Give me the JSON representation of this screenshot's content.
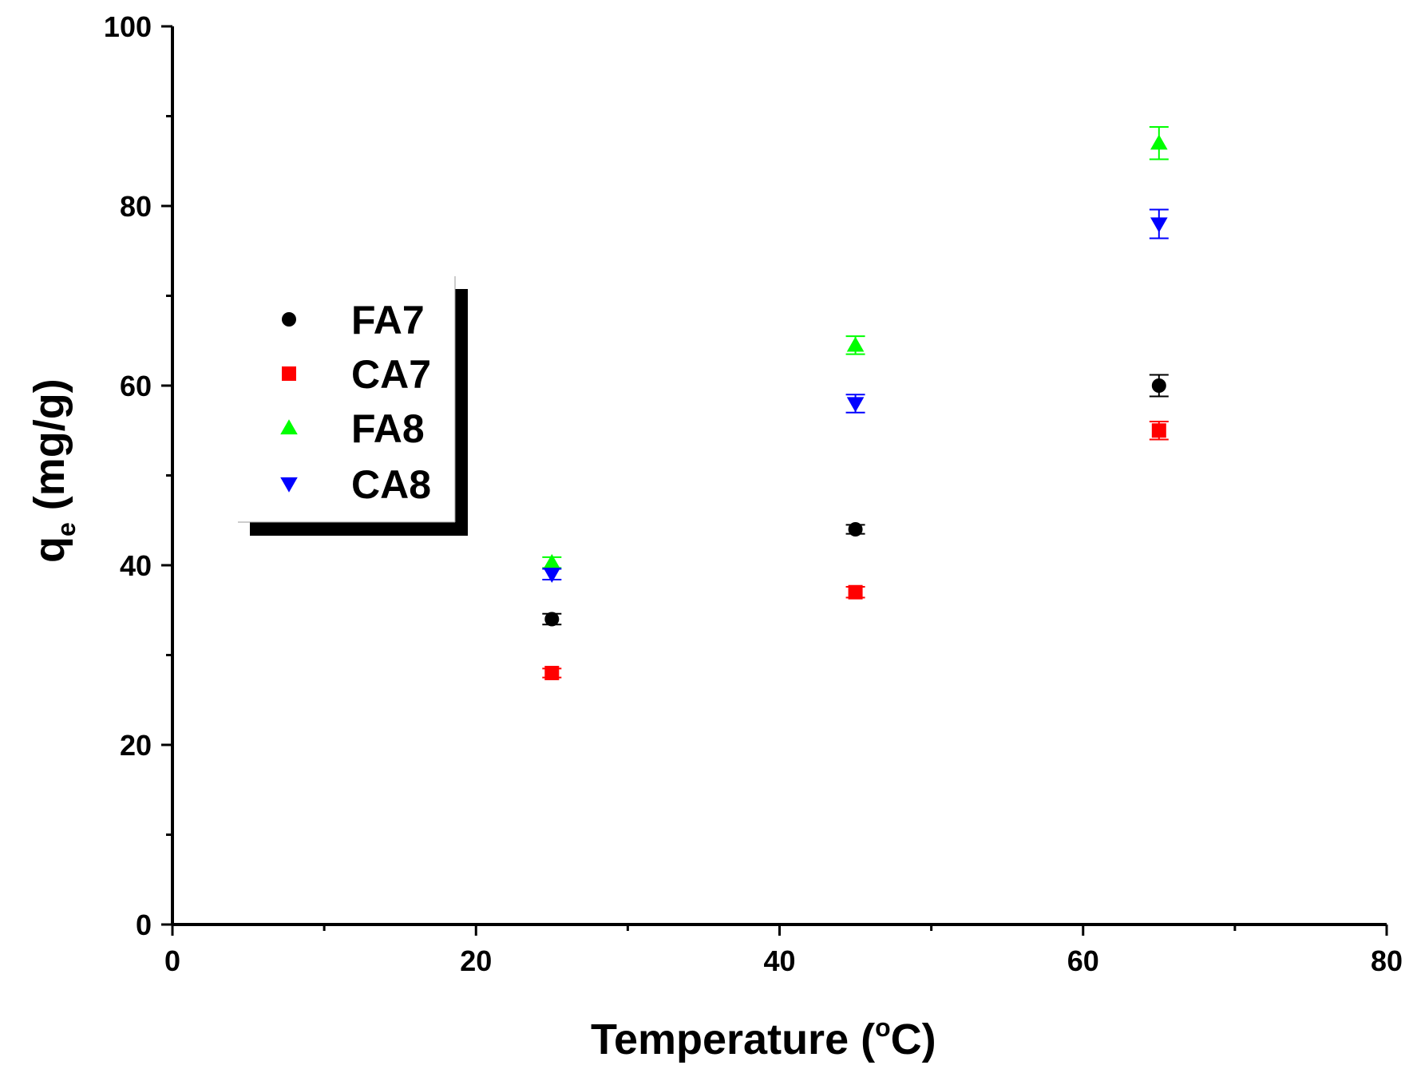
{
  "chart_data": {
    "type": "scatter",
    "title": "",
    "xlabel": "Temperature (°C)",
    "xlabel_parts": {
      "pre": "Temperature (",
      "degree": "o",
      "post": "C)"
    },
    "ylabel": "qe (mg/g)",
    "ylabel_parts": {
      "q": "q",
      "sub": "e",
      "units": " (mg/g)"
    },
    "xlim": [
      0,
      80
    ],
    "ylim": [
      0,
      100
    ],
    "x_ticks": [
      0,
      20,
      40,
      60,
      80
    ],
    "x_minor_ticks": [
      10,
      30,
      50,
      70
    ],
    "y_ticks": [
      0,
      20,
      40,
      60,
      80,
      100
    ],
    "y_minor_ticks": [
      10,
      30,
      50,
      70,
      90
    ],
    "grid": false,
    "legend_position": "upper-left",
    "series": [
      {
        "name": "FA7",
        "marker": "circle",
        "color": "#000000",
        "points": [
          {
            "x": 25,
            "y": 34,
            "err": 0.6
          },
          {
            "x": 45,
            "y": 44,
            "err": 0.5
          },
          {
            "x": 65,
            "y": 60,
            "err": 1.2
          }
        ]
      },
      {
        "name": "CA7",
        "marker": "square",
        "color": "#ff0000",
        "points": [
          {
            "x": 25,
            "y": 28,
            "err": 0.5
          },
          {
            "x": 45,
            "y": 37,
            "err": 0.6
          },
          {
            "x": 65,
            "y": 55,
            "err": 1.0
          }
        ]
      },
      {
        "name": "FA8",
        "marker": "triangle-up",
        "color": "#00ff00",
        "points": [
          {
            "x": 25,
            "y": 40.3,
            "err": 0.6
          },
          {
            "x": 45,
            "y": 64.5,
            "err": 1.0
          },
          {
            "x": 65,
            "y": 87,
            "err": 1.8
          }
        ]
      },
      {
        "name": "CA8",
        "marker": "triangle-down",
        "color": "#0000ff",
        "points": [
          {
            "x": 25,
            "y": 39,
            "err": 0.6
          },
          {
            "x": 45,
            "y": 58,
            "err": 1.0
          },
          {
            "x": 65,
            "y": 78,
            "err": 1.6
          }
        ]
      }
    ]
  }
}
